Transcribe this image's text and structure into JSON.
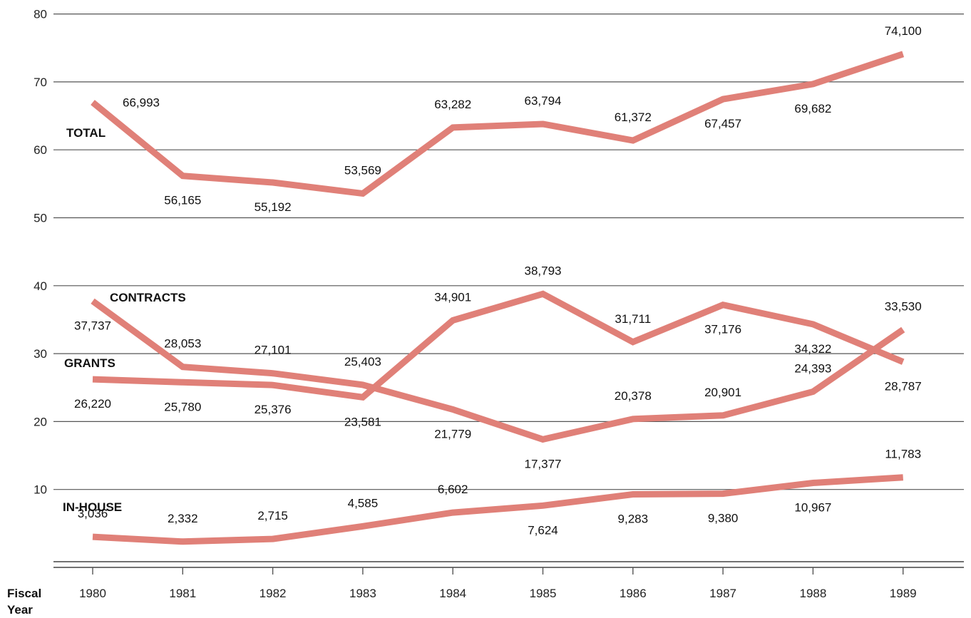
{
  "chart_data": {
    "type": "line",
    "x": [
      "1980",
      "1981",
      "1982",
      "1983",
      "1984",
      "1985",
      "1986",
      "1987",
      "1988",
      "1989"
    ],
    "xlabel": "Fiscal Year",
    "ylim": [
      0,
      80
    ],
    "yticks": [
      10,
      20,
      30,
      40,
      50,
      60,
      70,
      80
    ],
    "grid": true,
    "line_color": "#e08078",
    "series": [
      {
        "name": "TOTAL",
        "values": [
          66.993,
          56.165,
          55.192,
          53.569,
          63.282,
          63.794,
          61.372,
          67.457,
          69.682,
          74.1
        ],
        "labels": [
          "66,993",
          "56,165",
          "55,192",
          "53,569",
          "63,282",
          "63,794",
          "61,372",
          "67,457",
          "69,682",
          "74,100"
        ]
      },
      {
        "name": "CONTRACTS",
        "values": [
          37.737,
          28.053,
          27.101,
          25.403,
          21.779,
          17.377,
          20.378,
          20.901,
          24.393,
          33.53
        ],
        "labels": [
          "37,737",
          "28,053",
          "27,101",
          "25,403",
          "21,779",
          "17,377",
          "20,378",
          "20,901",
          "24,393",
          "33,530"
        ]
      },
      {
        "name": "GRANTS",
        "values": [
          26.22,
          25.78,
          25.376,
          23.581,
          34.901,
          38.793,
          31.711,
          37.176,
          34.322,
          28.787
        ],
        "labels": [
          "26,220",
          "25,780",
          "25,376",
          "23,581",
          "34,901",
          "38,793",
          "31,711",
          "37,176",
          "34,322",
          "28,787"
        ]
      },
      {
        "name": "IN-HOUSE",
        "values": [
          3.036,
          2.332,
          2.715,
          4.585,
          6.602,
          7.624,
          9.283,
          9.38,
          10.967,
          11.783
        ],
        "labels": [
          "3,036",
          "2,332",
          "2,715",
          "4,585",
          "6,602",
          "7,624",
          "9,283",
          "9,380",
          "10,967",
          "11,783"
        ]
      }
    ]
  }
}
